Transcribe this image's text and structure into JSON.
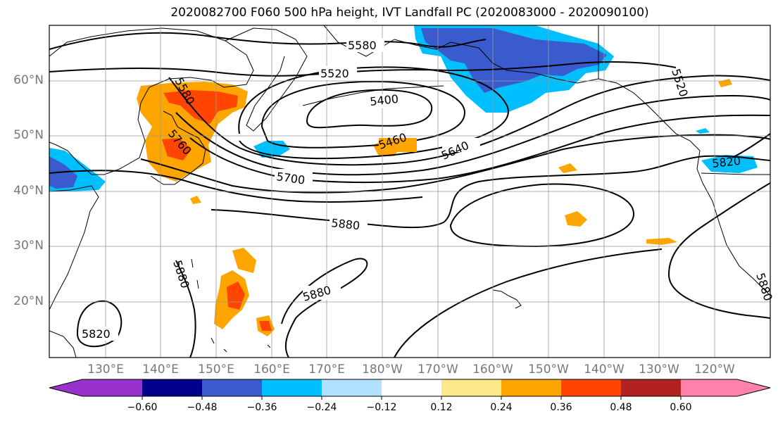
{
  "title": "2020082700 F060 500 hPa height, IVT Landfall PC (2020083000 - 2020090100)",
  "lat_labels": [
    "60°N",
    "50°N",
    "40°N",
    "30°N",
    "20°N"
  ],
  "lon_labels": [
    "130°E",
    "140°E",
    "150°E",
    "160°E",
    "170°E",
    "180°W",
    "170°W",
    "160°W",
    "150°W",
    "140°W",
    "130°W",
    "120°W"
  ],
  "contour_labels": [
    "5580",
    "5520",
    "5400",
    "5460",
    "5640",
    "5700",
    "5880",
    "5880",
    "5880",
    "5820",
    "5820",
    "5580",
    "5760",
    "5520",
    "5880"
  ],
  "colorbar": {
    "tick_labels": [
      "−0.60",
      "−0.48",
      "−0.36",
      "−0.24",
      "−0.12",
      "0.12",
      "0.24",
      "0.36",
      "0.48",
      "0.60"
    ],
    "colors": [
      "#9932cc",
      "#00008b",
      "#3a5bcd",
      "#00bfff",
      "#b0e2ff",
      "#ffffff",
      "#fee98a",
      "#ffa500",
      "#ff4500",
      "#b22222",
      "#ff82ab"
    ]
  }
}
